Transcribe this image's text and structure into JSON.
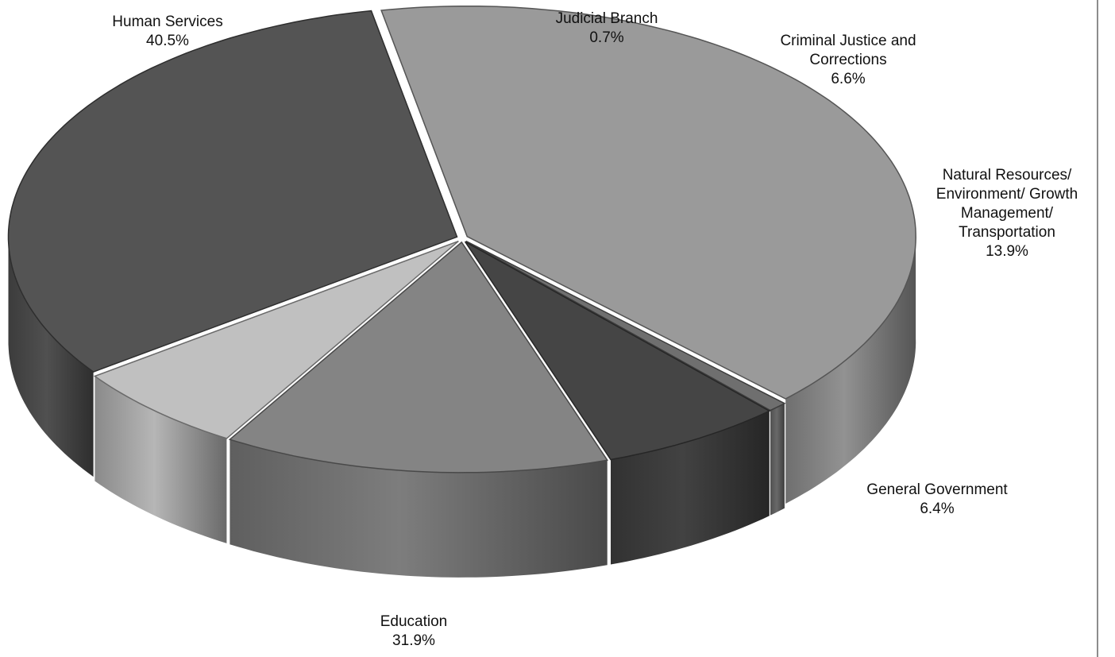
{
  "chart_data": {
    "type": "pie",
    "title": "",
    "slices": [
      {
        "name": "Human Services",
        "value": 40.5,
        "label": "40.5%",
        "color": "#9a9a9a"
      },
      {
        "name": "Judicial Branch",
        "value": 0.7,
        "label": "0.7%",
        "color": "#6f6f6f"
      },
      {
        "name": "Criminal Justice and Corrections",
        "value": 6.6,
        "label": "6.6%",
        "color": "#454545"
      },
      {
        "name": "Natural Resources/ Environment/ Growth Management/ Transportation",
        "value": 13.9,
        "label": "13.9%",
        "color": "#848484"
      },
      {
        "name": "General Government",
        "value": 6.4,
        "label": "6.4%",
        "color": "#c0c0c0"
      },
      {
        "name": "Education",
        "value": 31.9,
        "label": "31.9%",
        "color": "#545454"
      }
    ],
    "legend": "none",
    "labels": "outside, category name and percentage"
  }
}
